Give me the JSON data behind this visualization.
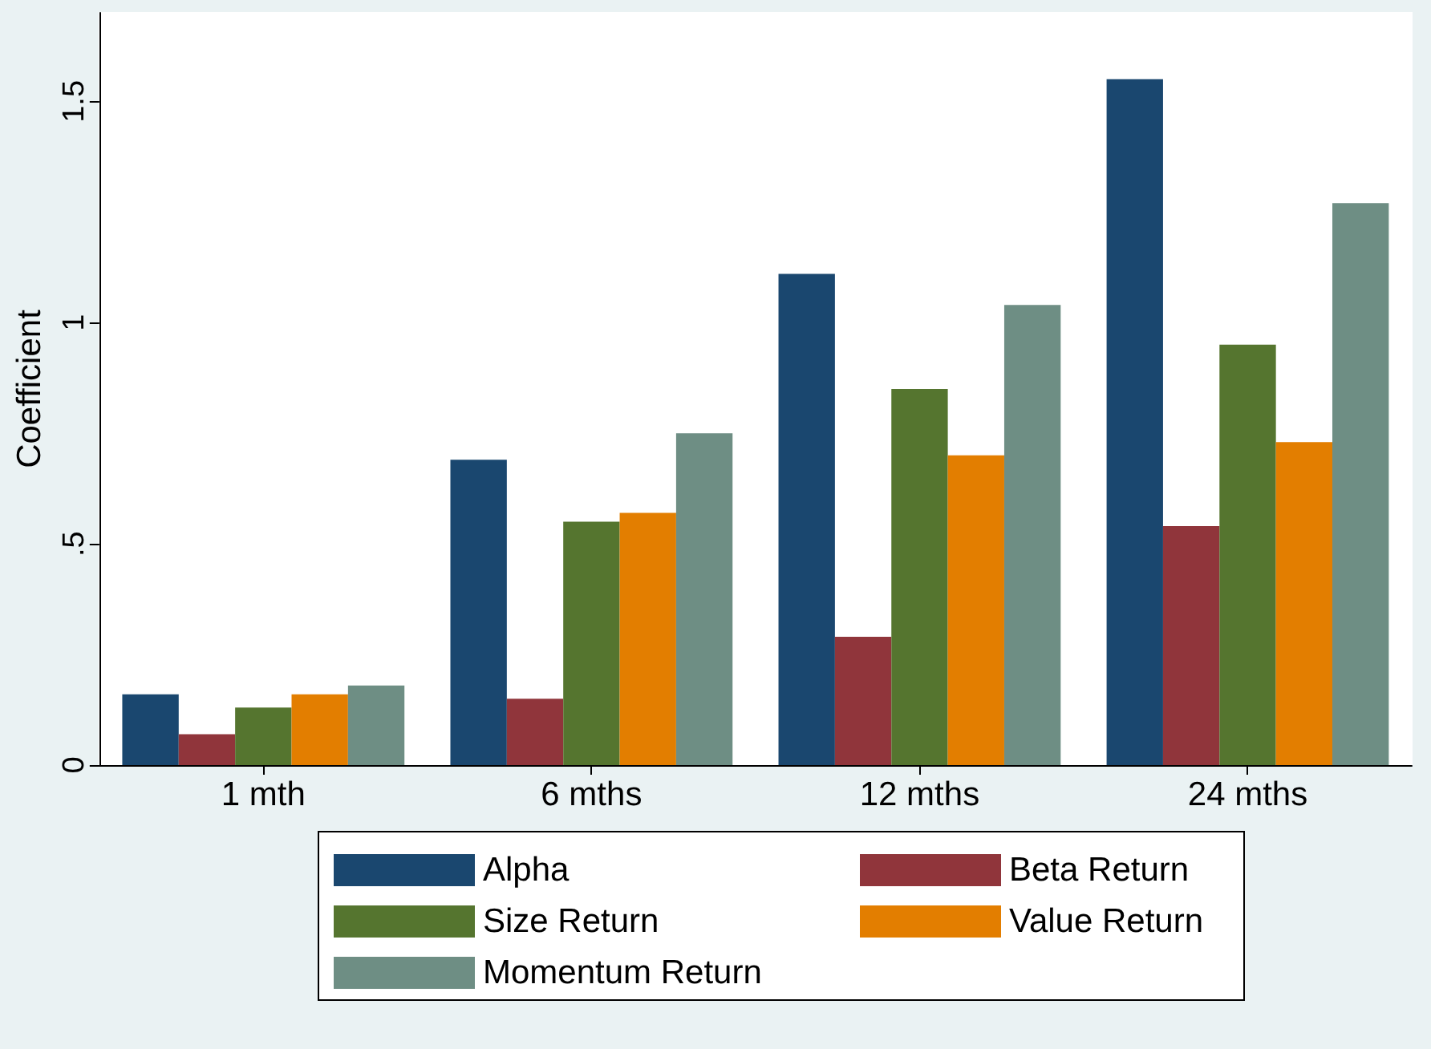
{
  "chart_data": {
    "type": "bar",
    "ylabel": "Coefficient",
    "categories": [
      "1 mth",
      "6 mths",
      "12 mths",
      "24 mths"
    ],
    "series": [
      {
        "name": "Alpha",
        "color": "#1a476f",
        "values": [
          0.16,
          0.69,
          1.11,
          1.55
        ]
      },
      {
        "name": "Beta Return",
        "color": "#90353b",
        "values": [
          0.07,
          0.15,
          0.29,
          0.54
        ]
      },
      {
        "name": "Size Return",
        "color": "#55752f",
        "values": [
          0.13,
          0.55,
          0.85,
          0.95
        ]
      },
      {
        "name": "Value Return",
        "color": "#e37e00",
        "values": [
          0.16,
          0.57,
          0.7,
          0.73
        ]
      },
      {
        "name": "Momentum Return",
        "color": "#6e8e84",
        "values": [
          0.18,
          0.75,
          1.04,
          1.27
        ]
      }
    ],
    "ylim": [
      0,
      1.7
    ],
    "yticks": [
      0,
      {
        "value": 0.5,
        "label": ".5"
      },
      1,
      1.5
    ],
    "grid": false,
    "legend": "bottom"
  }
}
